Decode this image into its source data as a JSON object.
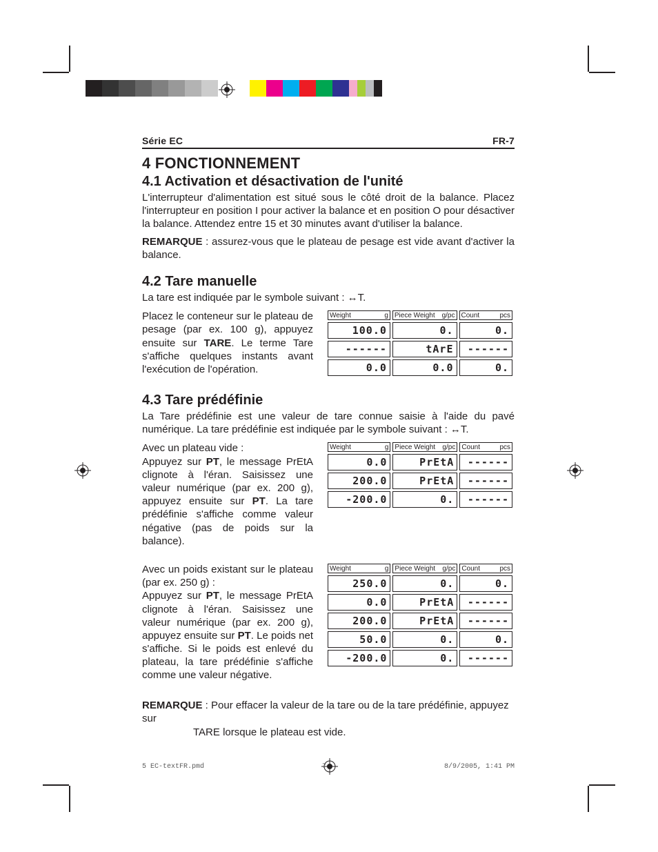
{
  "colorbar_left": [
    "#231f20",
    "#333333",
    "#4d4d4d",
    "#666666",
    "#808080",
    "#999999",
    "#b3b3b3",
    "#cccccc"
  ],
  "colorbar_right_full": [
    "#fff200",
    "#ec008c",
    "#00aeef",
    "#ed1c24",
    "#00a651",
    "#2e3192"
  ],
  "colorbar_right_half": [
    "#f6adcd",
    "#a6ce39",
    "#bcbec0",
    "#231f20"
  ],
  "header": {
    "left": "Série EC",
    "right": "FR-7"
  },
  "h1": "4 FONCTIONNEMENT",
  "h2_41": "4.1 Activation et désactivation de l'unité",
  "p41a": "L'interrupteur d'alimentation est situé sous le côté droit de la balance. Placez l'interrupteur en position I pour activer la balance et en position O pour désactiver la balance.  Attendez entre 15 et 30 minutes avant d'utiliser la balance.",
  "p41b_bold": "REMARQUE",
  "p41b_rest": " : assurez-vous que le plateau de pesage est vide avant d'activer la balance.",
  "h2_42": "4.2 Tare manuelle",
  "p42a": "La tare est indiquée par le symbole suivant : ↔T.",
  "p42b_1": "Placez le conteneur sur le plateau de pesage (par ex. 100 g), appuyez ensuite sur ",
  "p42b_bold": "TARE",
  "p42b_2": ". Le terme Tare s'affiche quelques instants avant l'exécution de l'opération.",
  "hdr": {
    "weight_l": "Weight",
    "weight_r": "g",
    "piece_l": "Piece Weight",
    "piece_r": "g/pc",
    "count_l": "Count",
    "count_r": "pcs"
  },
  "table42": {
    "rows": [
      {
        "w": "100.0",
        "p": "0.",
        "c": "0."
      },
      {
        "w": "------",
        "p": "tArE",
        "c": "------"
      },
      {
        "w": "0.0",
        "p": "0.0",
        "c": "0."
      }
    ]
  },
  "h2_43": "4.3 Tare prédéfinie",
  "p43a": "La Tare prédéfinie est une valeur de tare connue saisie à l'aide du pavé numérique. La tare prédéfinie est indiquée par le symbole suivant : ↔T.",
  "p43b_lead": "Avec un plateau vide :",
  "p43b_1": "Appuyez sur ",
  "p43b_b1": "PT",
  "p43b_2": ", le message PrEtA clignote à l'éran.  Saisissez une valeur numérique (par ex. 200 g), appuyez ensuite sur ",
  "p43b_b2": "PT",
  "p43b_3": ". La tare prédéfinie s'affiche comme valeur négative (pas de poids sur la balance).",
  "table43a": {
    "rows": [
      {
        "w": "0.0",
        "p": "PrEtA",
        "c": "------"
      },
      {
        "w": "200.0",
        "p": "PrEtA",
        "c": "------"
      },
      {
        "w": "-200.0",
        "p": "0.",
        "c": "------"
      }
    ]
  },
  "p43c_lead": "Avec un poids existant sur le plateau (par ex. 250 g) :",
  "p43c_1": "Appuyez sur ",
  "p43c_b1": "PT",
  "p43c_2": ", le message PrEtA clignote à l'éran.  Saisissez une valeur numérique (par ex. 200 g), appuyez ensuite sur ",
  "p43c_b2": "PT",
  "p43c_3": ". Le poids net s'affiche. Si le poids est enlevé du plateau, la tare prédéfinie s'affiche comme une valeur négative.",
  "table43b": {
    "rows": [
      {
        "w": "250.0",
        "p": "0.",
        "c": "0."
      },
      {
        "w": "0.0",
        "p": "PrEtA",
        "c": "------"
      },
      {
        "w": "200.0",
        "p": "PrEtA",
        "c": "------"
      },
      {
        "w": "50.0",
        "p": "0.",
        "c": "0."
      },
      {
        "w": "-200.0",
        "p": "0.",
        "c": "------"
      }
    ]
  },
  "remark_final_b1": "REMARQUE",
  "remark_final_1": " : Pour effacer la valeur de la tare ou de la tare prédéfinie, appuyez sur",
  "remark_final_b2": "TARE",
  "remark_final_2": " lorsque le plateau est vide.",
  "footer": {
    "file": "5 EC-textFR.pmd",
    "page": "7",
    "date": "8/9/2005, 1:41 PM"
  }
}
